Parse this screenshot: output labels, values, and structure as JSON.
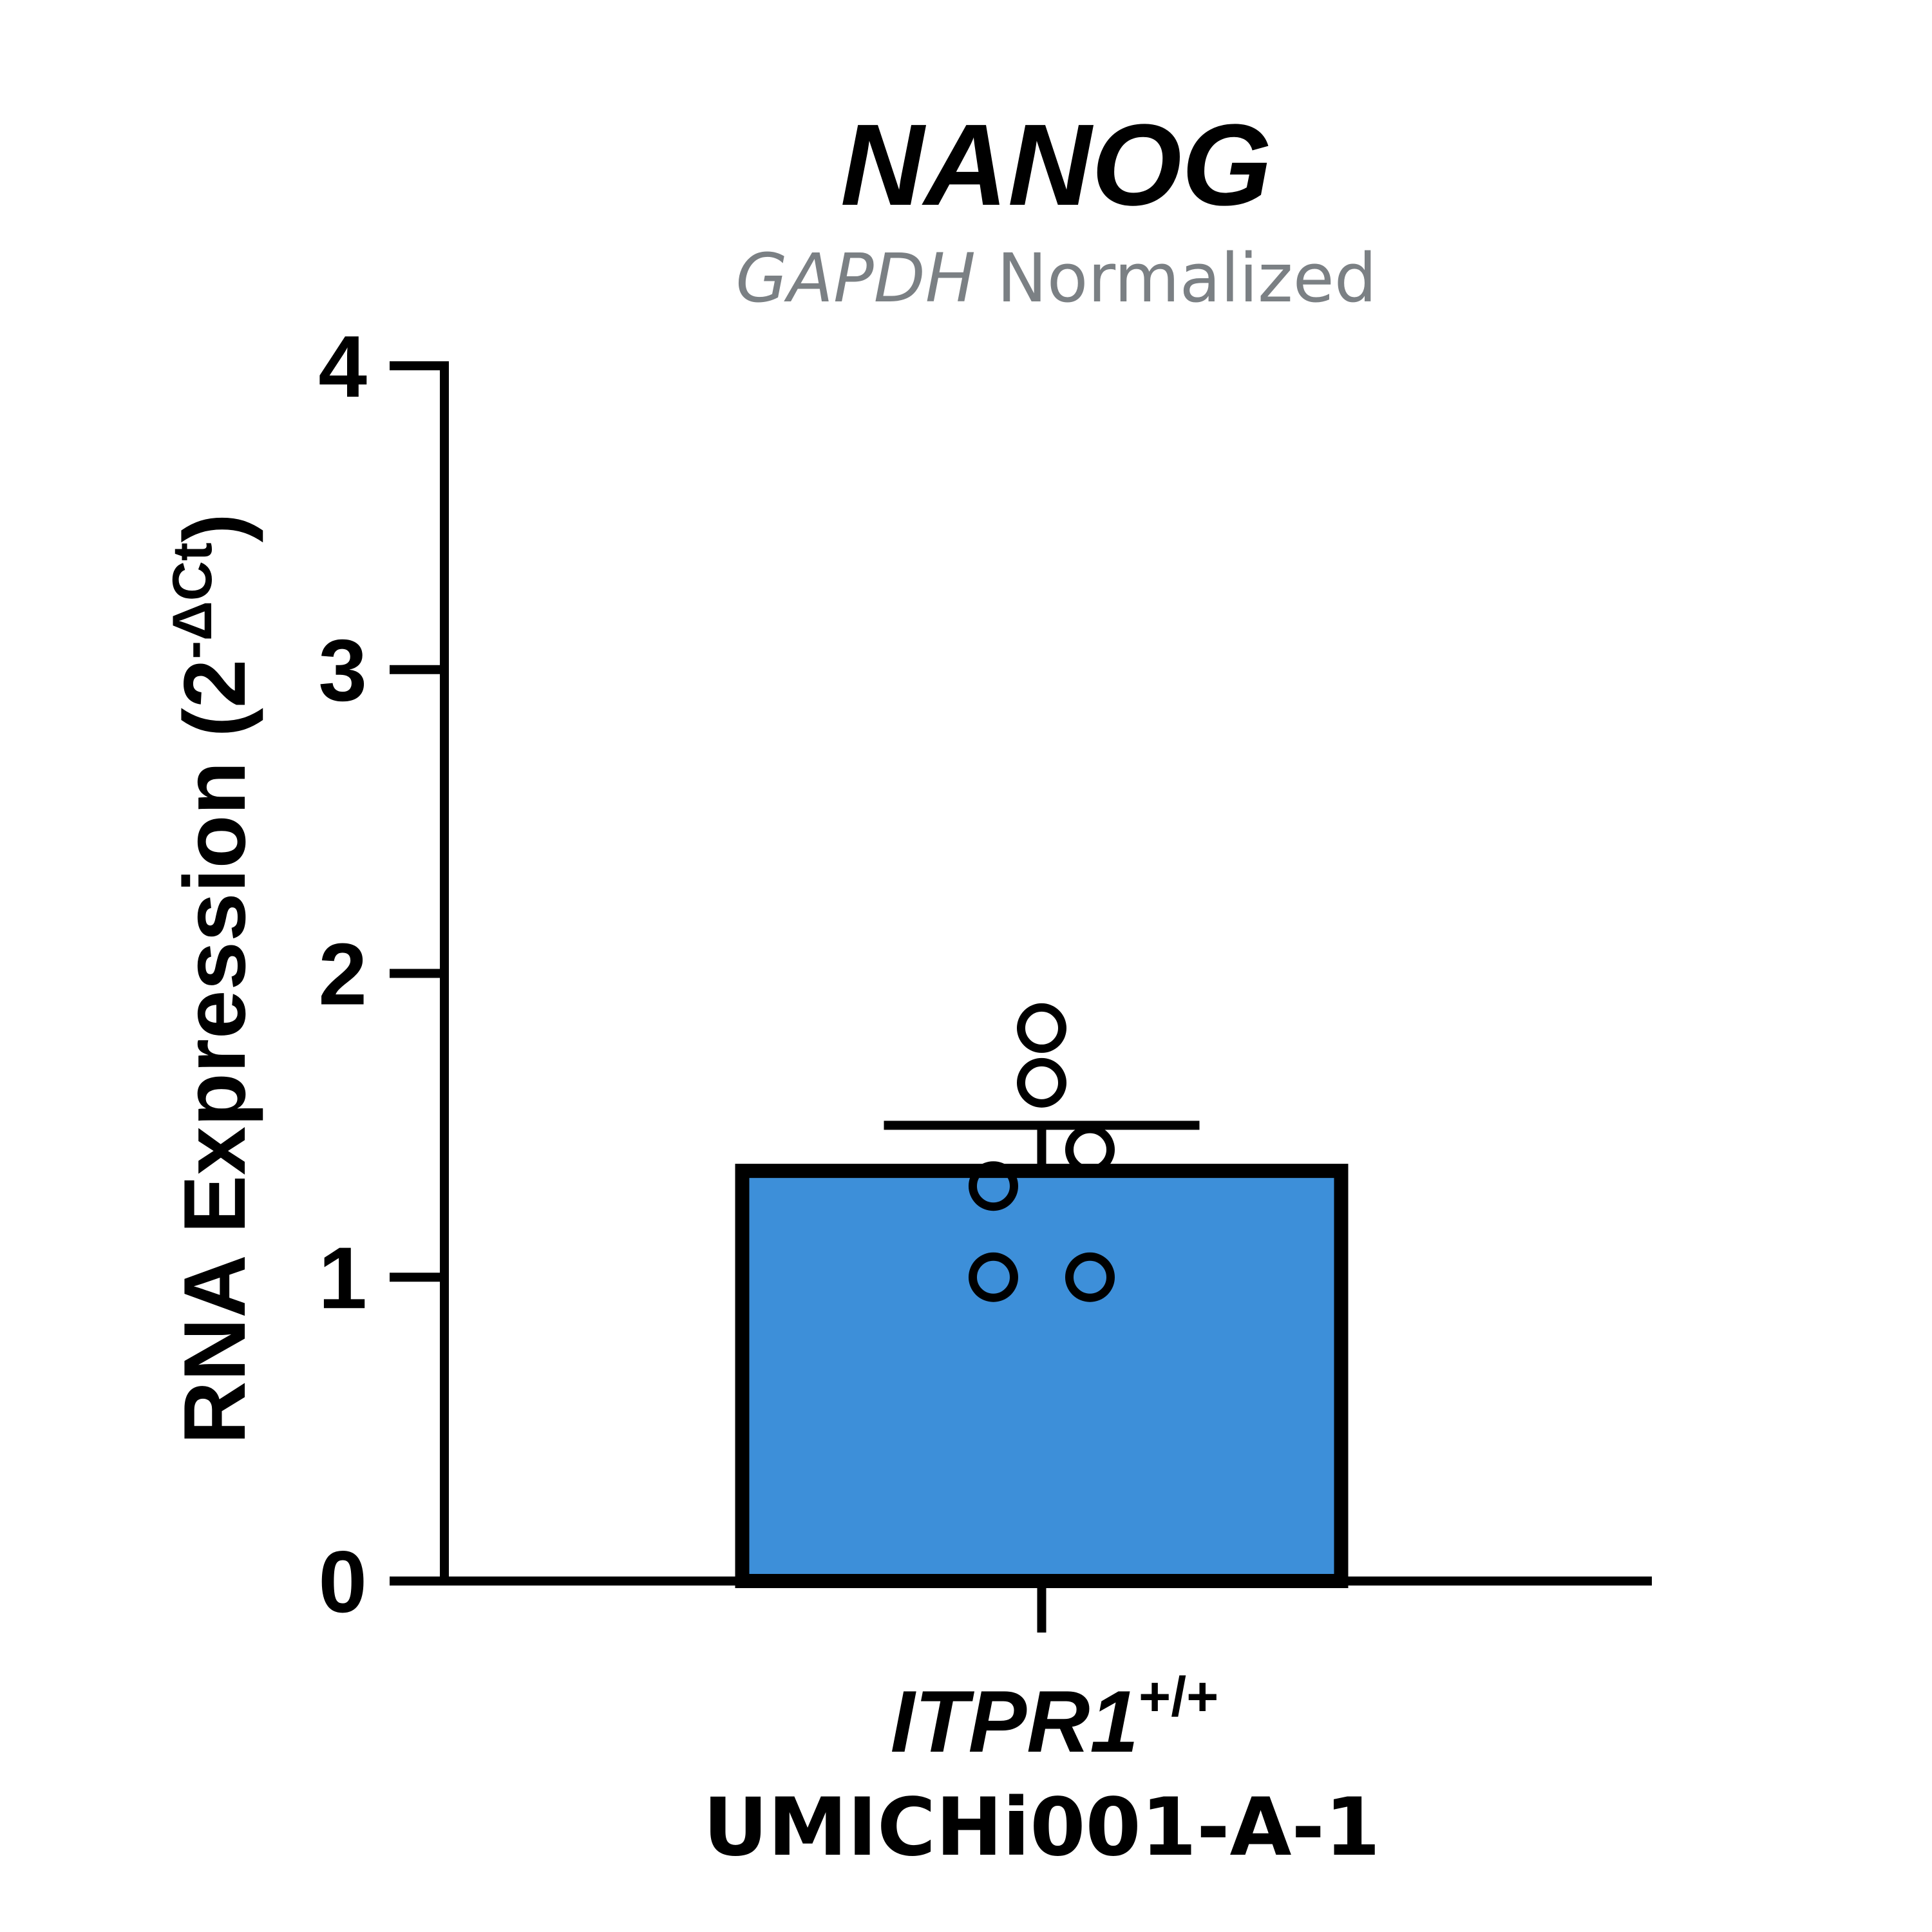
{
  "chart_data": {
    "type": "bar",
    "title": "NANOG",
    "subtitle": {
      "italic_part": "GAPDH",
      "plain_part": " Normalized"
    },
    "ylabel": {
      "main": "RNA Expression (2",
      "superscript": "-ΔCt",
      "close": ")"
    },
    "ylim": [
      0,
      4
    ],
    "yticks": [
      0,
      1,
      2,
      3,
      4
    ],
    "grid": false,
    "categories": [
      {
        "gene": "ITPR1",
        "genotype": "+/+",
        "line": "UMICHi001-A-1"
      }
    ],
    "series": [
      {
        "values": [
          1.35
        ],
        "error": [
          0.15
        ],
        "points": [
          1.82,
          1.64,
          1.42,
          1.3,
          1.0,
          1.0
        ],
        "color": "#3d8fd9"
      }
    ]
  }
}
